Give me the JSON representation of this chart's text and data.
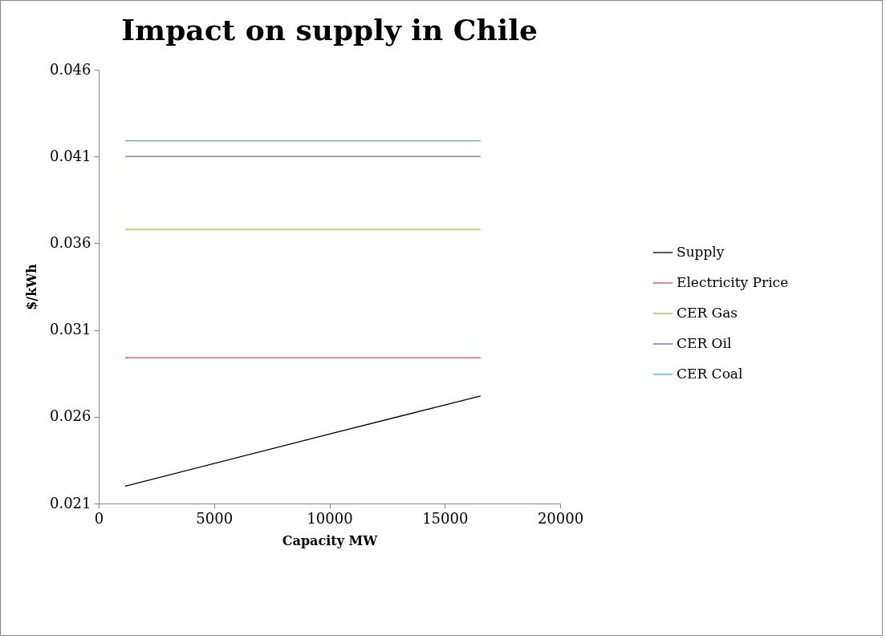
{
  "chart_data": {
    "type": "line",
    "title": "Impact on supply in Chile",
    "xlabel": "Capacity MW",
    "ylabel": "$/kWh",
    "xlim": [
      0,
      20000
    ],
    "xticks": [
      0,
      5000,
      10000,
      15000,
      20000
    ],
    "ylim": [
      0.021,
      0.046
    ],
    "yticks": [
      0.021,
      0.026,
      0.031,
      0.036,
      0.041,
      0.046
    ],
    "grid": false,
    "legend": "right",
    "marker": "none",
    "line_style": "solid",
    "series": [
      {
        "name": "Supply",
        "color": "#000000",
        "x": [
          1150,
          10000,
          16550
        ],
        "values": [
          0.022,
          0.025,
          0.0272
        ]
      },
      {
        "name": "Electricity Price",
        "color": "#c0504d",
        "x": [
          1150,
          16550
        ],
        "values": [
          0.0294,
          0.0294
        ]
      },
      {
        "name": "CER Gas",
        "color": "#9bbb59",
        "x": [
          1150,
          16550
        ],
        "values": [
          0.0368,
          0.0368
        ]
      },
      {
        "name": "CER Oil",
        "color": "#8064a2",
        "x": [
          1150,
          16550
        ],
        "values": [
          0.041,
          0.041
        ]
      },
      {
        "name": "CER Coal",
        "color": "#4bacc6",
        "x": [
          1150,
          16550
        ],
        "values": [
          0.0419,
          0.0419
        ]
      }
    ]
  }
}
